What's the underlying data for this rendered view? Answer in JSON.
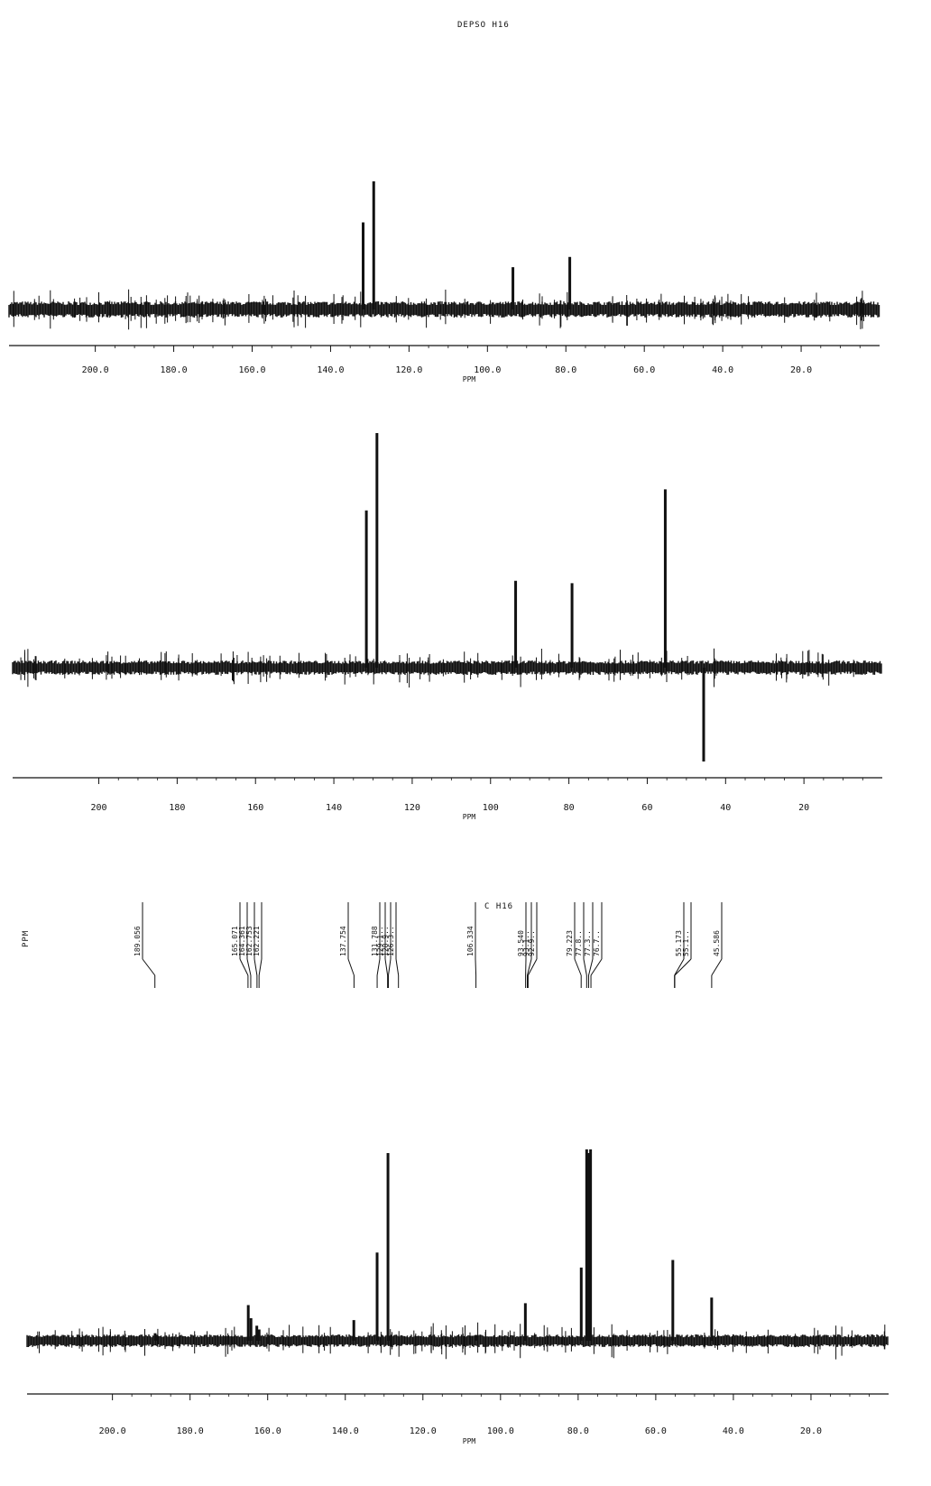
{
  "title": "DEPSO H16",
  "peak_list_title": "C H16",
  "peak_list_unit": "PPM",
  "colors": {
    "ink": "#111111",
    "paper": "#ffffff"
  },
  "chart_data": [
    {
      "type": "line",
      "name": "top_spectrum",
      "xlabel": "PPM",
      "x_reversed": true,
      "xlim": [
        222,
        0
      ],
      "ticks": [
        200,
        180,
        160,
        140,
        120,
        100,
        80,
        60,
        40,
        20
      ],
      "tick_labels": [
        "200.0",
        "180.0",
        "160.0",
        "140.0",
        "120.0",
        "100.0",
        "80.0",
        "60.0",
        "40.0",
        "20.0"
      ],
      "peaks": [
        {
          "ppm": 131.7,
          "intensity": 0.68
        },
        {
          "ppm": 129.0,
          "intensity": 1.0
        },
        {
          "ppm": 93.5,
          "intensity": 0.33
        },
        {
          "ppm": 79.0,
          "intensity": 0.41
        }
      ]
    },
    {
      "type": "line",
      "name": "middle_spectrum",
      "xlabel": "PPM",
      "x_reversed": true,
      "xlim": [
        222,
        0
      ],
      "ticks": [
        200,
        180,
        160,
        140,
        120,
        100,
        80,
        60,
        40,
        20
      ],
      "tick_labels": [
        "200",
        "180",
        "160",
        "140",
        "120",
        "100",
        "80",
        "60",
        "40",
        "20"
      ],
      "peaks": [
        {
          "ppm": 131.7,
          "intensity": 0.67
        },
        {
          "ppm": 129.0,
          "intensity": 1.0
        },
        {
          "ppm": 93.6,
          "intensity": 0.37
        },
        {
          "ppm": 79.2,
          "intensity": 0.36
        },
        {
          "ppm": 55.4,
          "intensity": 0.76
        },
        {
          "ppm": 45.6,
          "intensity": -0.4
        }
      ]
    },
    {
      "type": "line",
      "name": "bottom_spectrum",
      "xlabel": "PPM",
      "x_reversed": true,
      "xlim": [
        222,
        0
      ],
      "ticks": [
        200,
        180,
        160,
        140,
        120,
        100,
        80,
        60,
        40,
        20
      ],
      "tick_labels": [
        "200.0",
        "180.0",
        "160.0",
        "140.0",
        "120.0",
        "100.0",
        "80.0",
        "60.0",
        "40.0",
        "20.0"
      ],
      "peaks": [
        {
          "ppm": 189.0,
          "intensity": 0.04
        },
        {
          "ppm": 165.0,
          "intensity": 0.19
        },
        {
          "ppm": 164.3,
          "intensity": 0.12
        },
        {
          "ppm": 162.8,
          "intensity": 0.08
        },
        {
          "ppm": 162.2,
          "intensity": 0.06
        },
        {
          "ppm": 137.8,
          "intensity": 0.11
        },
        {
          "ppm": 131.8,
          "intensity": 0.47
        },
        {
          "ppm": 129.0,
          "intensity": 1.0
        },
        {
          "ppm": 106.3,
          "intensity": 0.03
        },
        {
          "ppm": 93.6,
          "intensity": 0.2
        },
        {
          "ppm": 79.2,
          "intensity": 0.39
        },
        {
          "ppm": 77.8,
          "intensity": 1.02
        },
        {
          "ppm": 77.3,
          "intensity": 1.0
        },
        {
          "ppm": 76.8,
          "intensity": 1.02
        },
        {
          "ppm": 55.6,
          "intensity": 0.43
        },
        {
          "ppm": 45.6,
          "intensity": 0.23
        }
      ],
      "peak_labels": [
        "189.056",
        "165.071",
        "164.361",
        "162.753",
        "162.221",
        "137.754",
        "131.788",
        "129.1..",
        "128.9..",
        "126.3..",
        "106.334",
        "93.540",
        "93.1..",
        "92.9..",
        "79.223",
        "77.8..",
        "77.3..",
        "76.7..",
        "55.173",
        "55.1..",
        "45.586"
      ]
    }
  ]
}
